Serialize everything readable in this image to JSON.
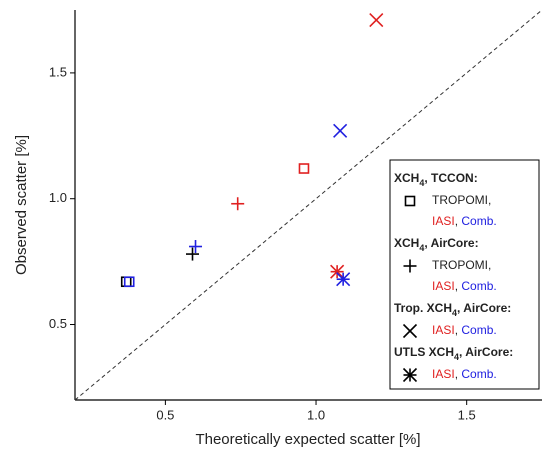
{
  "chart_data": {
    "type": "scatter",
    "x_label": "Theoretically expected scatter [%]",
    "y_label": "Observed scatter [%]",
    "xlim": [
      0.2,
      1.75
    ],
    "ylim": [
      0.2,
      1.75
    ],
    "xticks": [
      0.5,
      {
        "value": 1,
        "label": "1.0"
      },
      1.5
    ],
    "yticks": [
      0.5,
      {
        "value": 1,
        "label": "1.0"
      },
      1.5
    ],
    "series": [
      {
        "marker": "square",
        "color": "#000000",
        "x": [
          0.37
        ],
        "values": [
          0.67
        ]
      },
      {
        "marker": "square",
        "color": "#2020e0",
        "x": [
          0.38
        ],
        "values": [
          0.67
        ]
      },
      {
        "marker": "square",
        "color": "#e02020",
        "x": [
          0.96
        ],
        "values": [
          1.12
        ]
      },
      {
        "marker": "plus",
        "color": "#e02020",
        "x": [
          0.74
        ],
        "values": [
          0.98
        ]
      },
      {
        "marker": "plus",
        "color": "#2020e0",
        "x": [
          0.6
        ],
        "values": [
          0.81
        ]
      },
      {
        "marker": "plus",
        "color": "#000000",
        "x": [
          0.59
        ],
        "values": [
          0.78
        ]
      },
      {
        "marker": "cross",
        "color": "#e02020",
        "x": [
          1.2
        ],
        "values": [
          1.71
        ]
      },
      {
        "marker": "cross",
        "color": "#2020e0",
        "x": [
          1.08
        ],
        "values": [
          1.27
        ]
      },
      {
        "marker": "star",
        "color": "#e02020",
        "x": [
          1.07
        ],
        "values": [
          0.71
        ]
      },
      {
        "marker": "star",
        "color": "#2020e0",
        "x": [
          1.09
        ],
        "values": [
          0.68
        ]
      }
    ],
    "legend": {
      "groups": [
        {
          "title": [
            "XCH",
            "4",
            ", TCCON:"
          ],
          "marker": "square",
          "entries": [
            [
              "TROPOMI,"
            ],
            [
              "IASI",
              ", ",
              "Comb."
            ]
          ]
        },
        {
          "title": [
            "XCH",
            "4",
            ", AirCore:"
          ],
          "marker": "plus",
          "entries": [
            [
              "TROPOMI,"
            ],
            [
              "IASI",
              ", ",
              "Comb."
            ]
          ]
        },
        {
          "title": [
            "Trop. XCH",
            "4",
            ", AirCore:"
          ],
          "marker": "cross",
          "entries": [
            [
              "IASI",
              ", ",
              "Comb."
            ]
          ]
        },
        {
          "title": [
            "UTLS XCH",
            "4",
            ", AirCore:"
          ],
          "marker": "star",
          "entries": [
            [
              "IASI",
              ", ",
              "Comb."
            ]
          ]
        }
      ]
    }
  }
}
